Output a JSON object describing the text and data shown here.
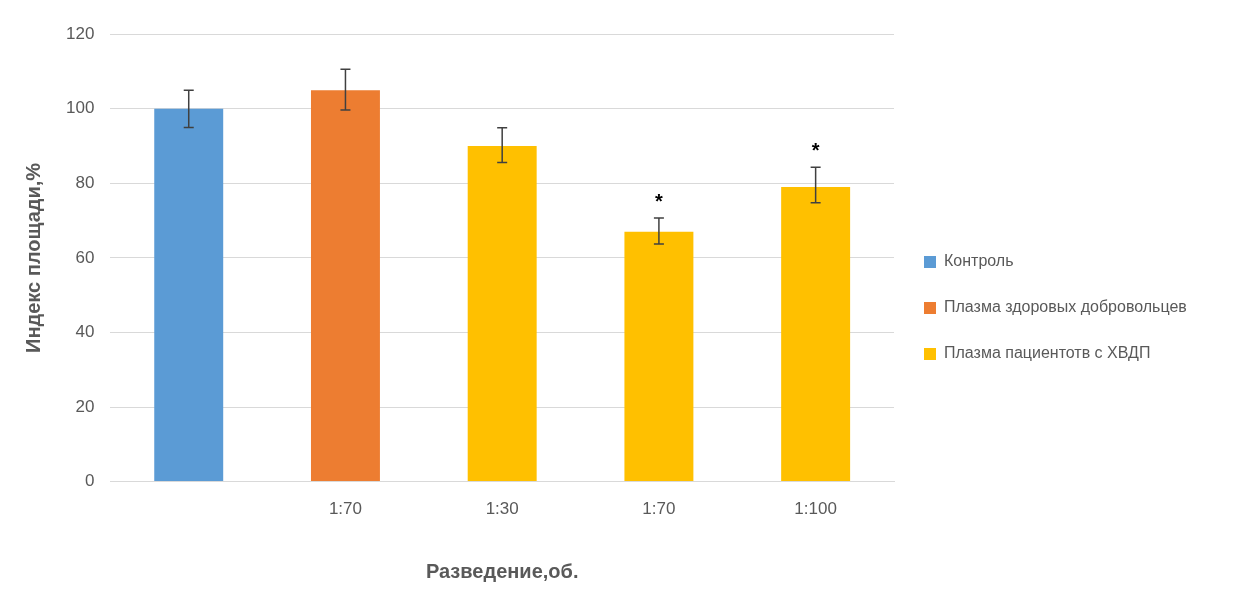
{
  "chart_data": {
    "type": "bar",
    "xlabel": "Разведение,об.",
    "ylabel": "Индекс площади,%",
    "categories": [
      null,
      "1:70",
      "1:30",
      "1:70",
      "1:100"
    ],
    "series": [
      {
        "name": "Контроль",
        "color": "#5b9bd5",
        "values": [
          100,
          null,
          null,
          null,
          null
        ],
        "errors": [
          5,
          null,
          null,
          null,
          null
        ]
      },
      {
        "name": "Плазма здоровых добровольцев",
        "color": "#ed7d31",
        "values": [
          null,
          105,
          null,
          null,
          null
        ],
        "errors": [
          null,
          [
            99.7,
            110.6
          ],
          null,
          null,
          null
        ]
      },
      {
        "name": "Плазма пациентотв с ХВДП",
        "color": "#ffc000",
        "values": [
          null,
          null,
          90,
          67,
          79
        ],
        "errors": [
          null,
          null,
          [
            85.6,
            94.9
          ],
          [
            63.7,
            70.7
          ],
          [
            74.8,
            84.3
          ]
        ],
        "value_labels": [
          null,
          null,
          null,
          "*",
          "*"
        ]
      }
    ],
    "ylim": [
      0,
      120
    ],
    "yticks": [
      0,
      20,
      40,
      60,
      80,
      100,
      120
    ],
    "grid": "y",
    "legend": "right"
  }
}
